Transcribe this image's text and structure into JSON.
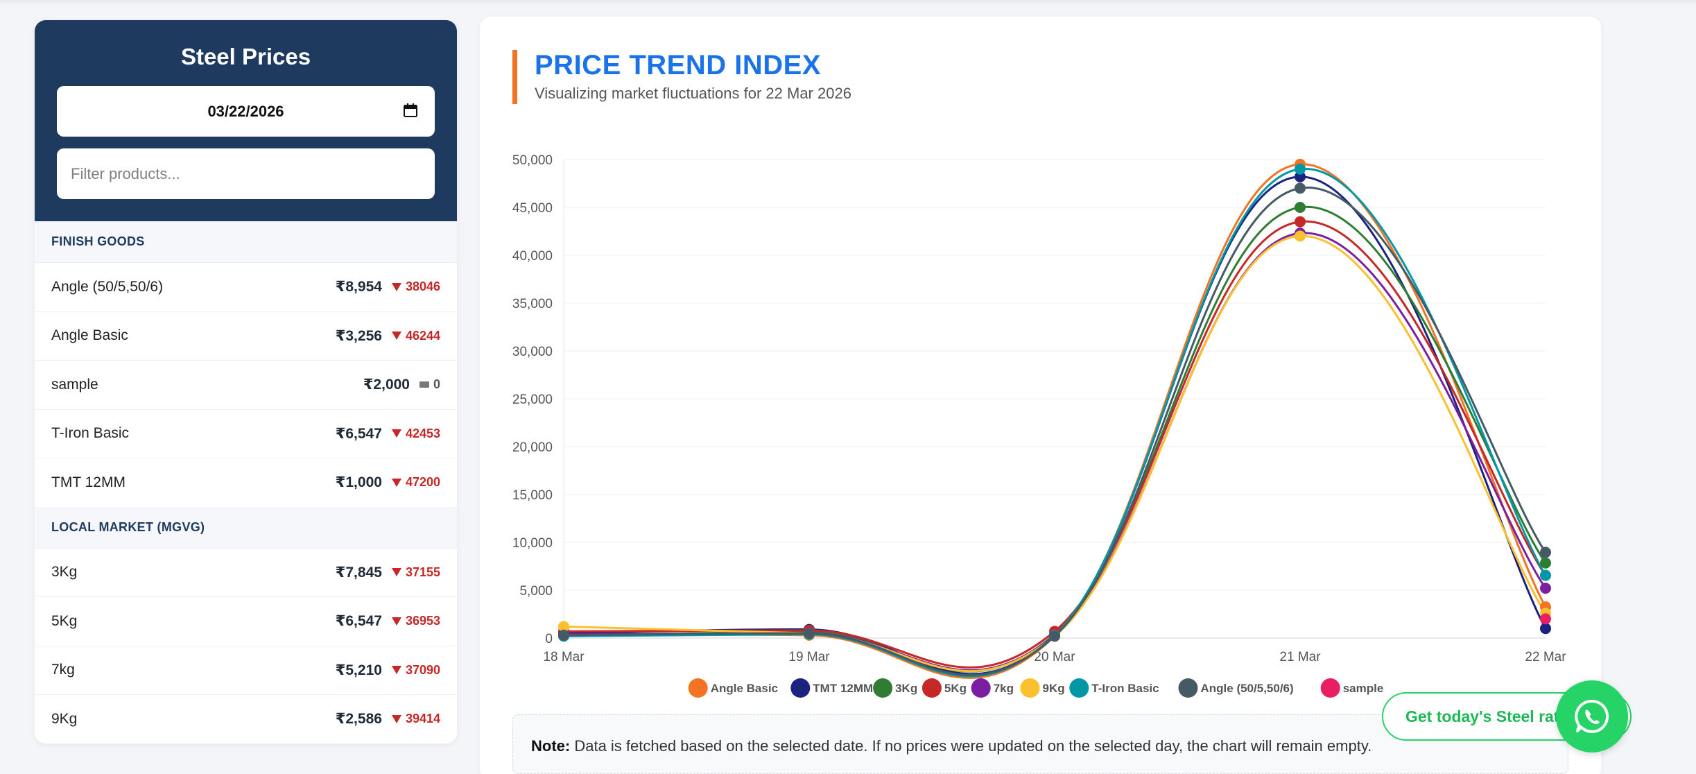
{
  "sidebar": {
    "title": "Steel Prices",
    "date_value": "03/22/2026",
    "filter_placeholder": "Filter products...",
    "sections": [
      {
        "title": "FINISH GOODS",
        "items": [
          {
            "name": "Angle (50/5,50/6)",
            "price": "₹8,954",
            "change": "38046",
            "direction": "down"
          },
          {
            "name": "Angle Basic",
            "price": "₹3,256",
            "change": "46244",
            "direction": "down"
          },
          {
            "name": "sample",
            "price": "₹2,000",
            "change": "0",
            "direction": "flat"
          },
          {
            "name": "T-Iron Basic",
            "price": "₹6,547",
            "change": "42453",
            "direction": "down"
          },
          {
            "name": "TMT 12MM",
            "price": "₹1,000",
            "change": "47200",
            "direction": "down"
          }
        ]
      },
      {
        "title": "LOCAL MARKET (MGVG)",
        "items": [
          {
            "name": "3Kg",
            "price": "₹7,845",
            "change": "37155",
            "direction": "down"
          },
          {
            "name": "5Kg",
            "price": "₹6,547",
            "change": "36953",
            "direction": "down"
          },
          {
            "name": "7kg",
            "price": "₹5,210",
            "change": "37090",
            "direction": "down"
          },
          {
            "name": "9Kg",
            "price": "₹2,586",
            "change": "39414",
            "direction": "down"
          }
        ]
      }
    ]
  },
  "main": {
    "title": "PRICE TREND INDEX",
    "subtitle": "Visualizing market fluctuations for 22 Mar 2026",
    "note_label": "Note:",
    "note_text": " Data is fetched based on the selected date. If no prices were updated on the selected day, the chart will remain empty."
  },
  "cta": {
    "label": "Get today's Steel rates",
    "icon": "whatsapp-icon"
  },
  "chart_data": {
    "type": "line",
    "x": [
      "18 Mar",
      "19 Mar",
      "20 Mar",
      "21 Mar",
      "22 Mar"
    ],
    "y_ticks": [
      "0",
      "5,000",
      "10,000",
      "15,000",
      "20,000",
      "25,000",
      "30,000",
      "35,000",
      "40,000",
      "45,000",
      "50,000"
    ],
    "ylim": [
      0,
      50000
    ],
    "grid": true,
    "legend_position": "bottom",
    "series": [
      {
        "name": "Angle Basic",
        "color": "#f27321",
        "values": [
          500,
          300,
          200,
          49500,
          3256
        ]
      },
      {
        "name": "TMT 12MM",
        "color": "#1a237e",
        "values": [
          500,
          900,
          300,
          48200,
          1000
        ]
      },
      {
        "name": "3Kg",
        "color": "#2e7d32",
        "values": [
          300,
          600,
          400,
          45000,
          7845
        ]
      },
      {
        "name": "5Kg",
        "color": "#c62828",
        "values": [
          700,
          800,
          700,
          43500,
          6547
        ]
      },
      {
        "name": "7kg",
        "color": "#7b1fa2",
        "values": [
          400,
          500,
          300,
          42300,
          5210
        ]
      },
      {
        "name": "9Kg",
        "color": "#fbc02d",
        "values": [
          1200,
          500,
          200,
          42000,
          2586
        ]
      },
      {
        "name": "T-Iron Basic",
        "color": "#0097a7",
        "values": [
          200,
          400,
          300,
          49000,
          6547
        ]
      },
      {
        "name": "Angle (50/5,50/6)",
        "color": "#455a64",
        "values": [
          300,
          500,
          200,
          47000,
          8954
        ]
      },
      {
        "name": "sample",
        "color": "#e91e63",
        "values": [
          null,
          null,
          null,
          null,
          2000
        ]
      }
    ]
  }
}
